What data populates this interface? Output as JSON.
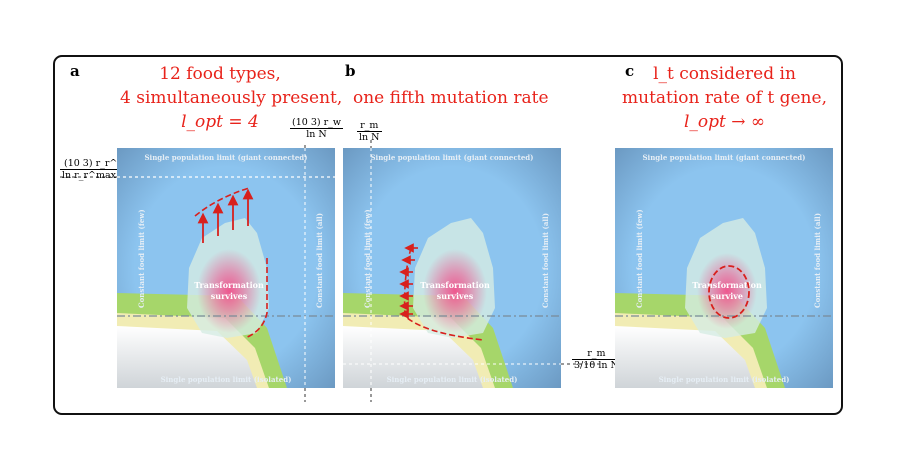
{
  "panels": {
    "a": {
      "letter": "a",
      "title_line1": "12 food types,",
      "title_line2": "4 simultaneously present,",
      "title_line3": "l_opt = 4",
      "x_threshold_num": "(10 3) r_w",
      "x_threshold_den": "ln N",
      "y_threshold_num": "(10 3) r_r^max",
      "y_threshold_den": "ln r_r^max / r_s"
    },
    "b": {
      "letter": "b",
      "title_line1": "one fifth mutation rate",
      "x_threshold_num": "r_m",
      "x_threshold_den": "ln N",
      "y_threshold_num": "r_m",
      "y_threshold_den": "3/10 ln N"
    },
    "c": {
      "letter": "c",
      "title_line1": "l_t considered in",
      "title_line2": "mutation rate of t gene,",
      "title_line3": "l_opt → ∞"
    }
  },
  "map_labels": {
    "top": "Single population limit (giant connected)",
    "bottom": "Single population limit (isolated)",
    "left": "Constant food limit (few)",
    "right": "Constant food limit (all)",
    "core_line1": "Transformation",
    "core_line2": "survives",
    "core_c_line2": "survive"
  },
  "colors": {
    "accent_red": "#e8231b",
    "sky": "#8cc4ef",
    "green": "#a6d66a",
    "yellow": "#f1ecb4"
  }
}
